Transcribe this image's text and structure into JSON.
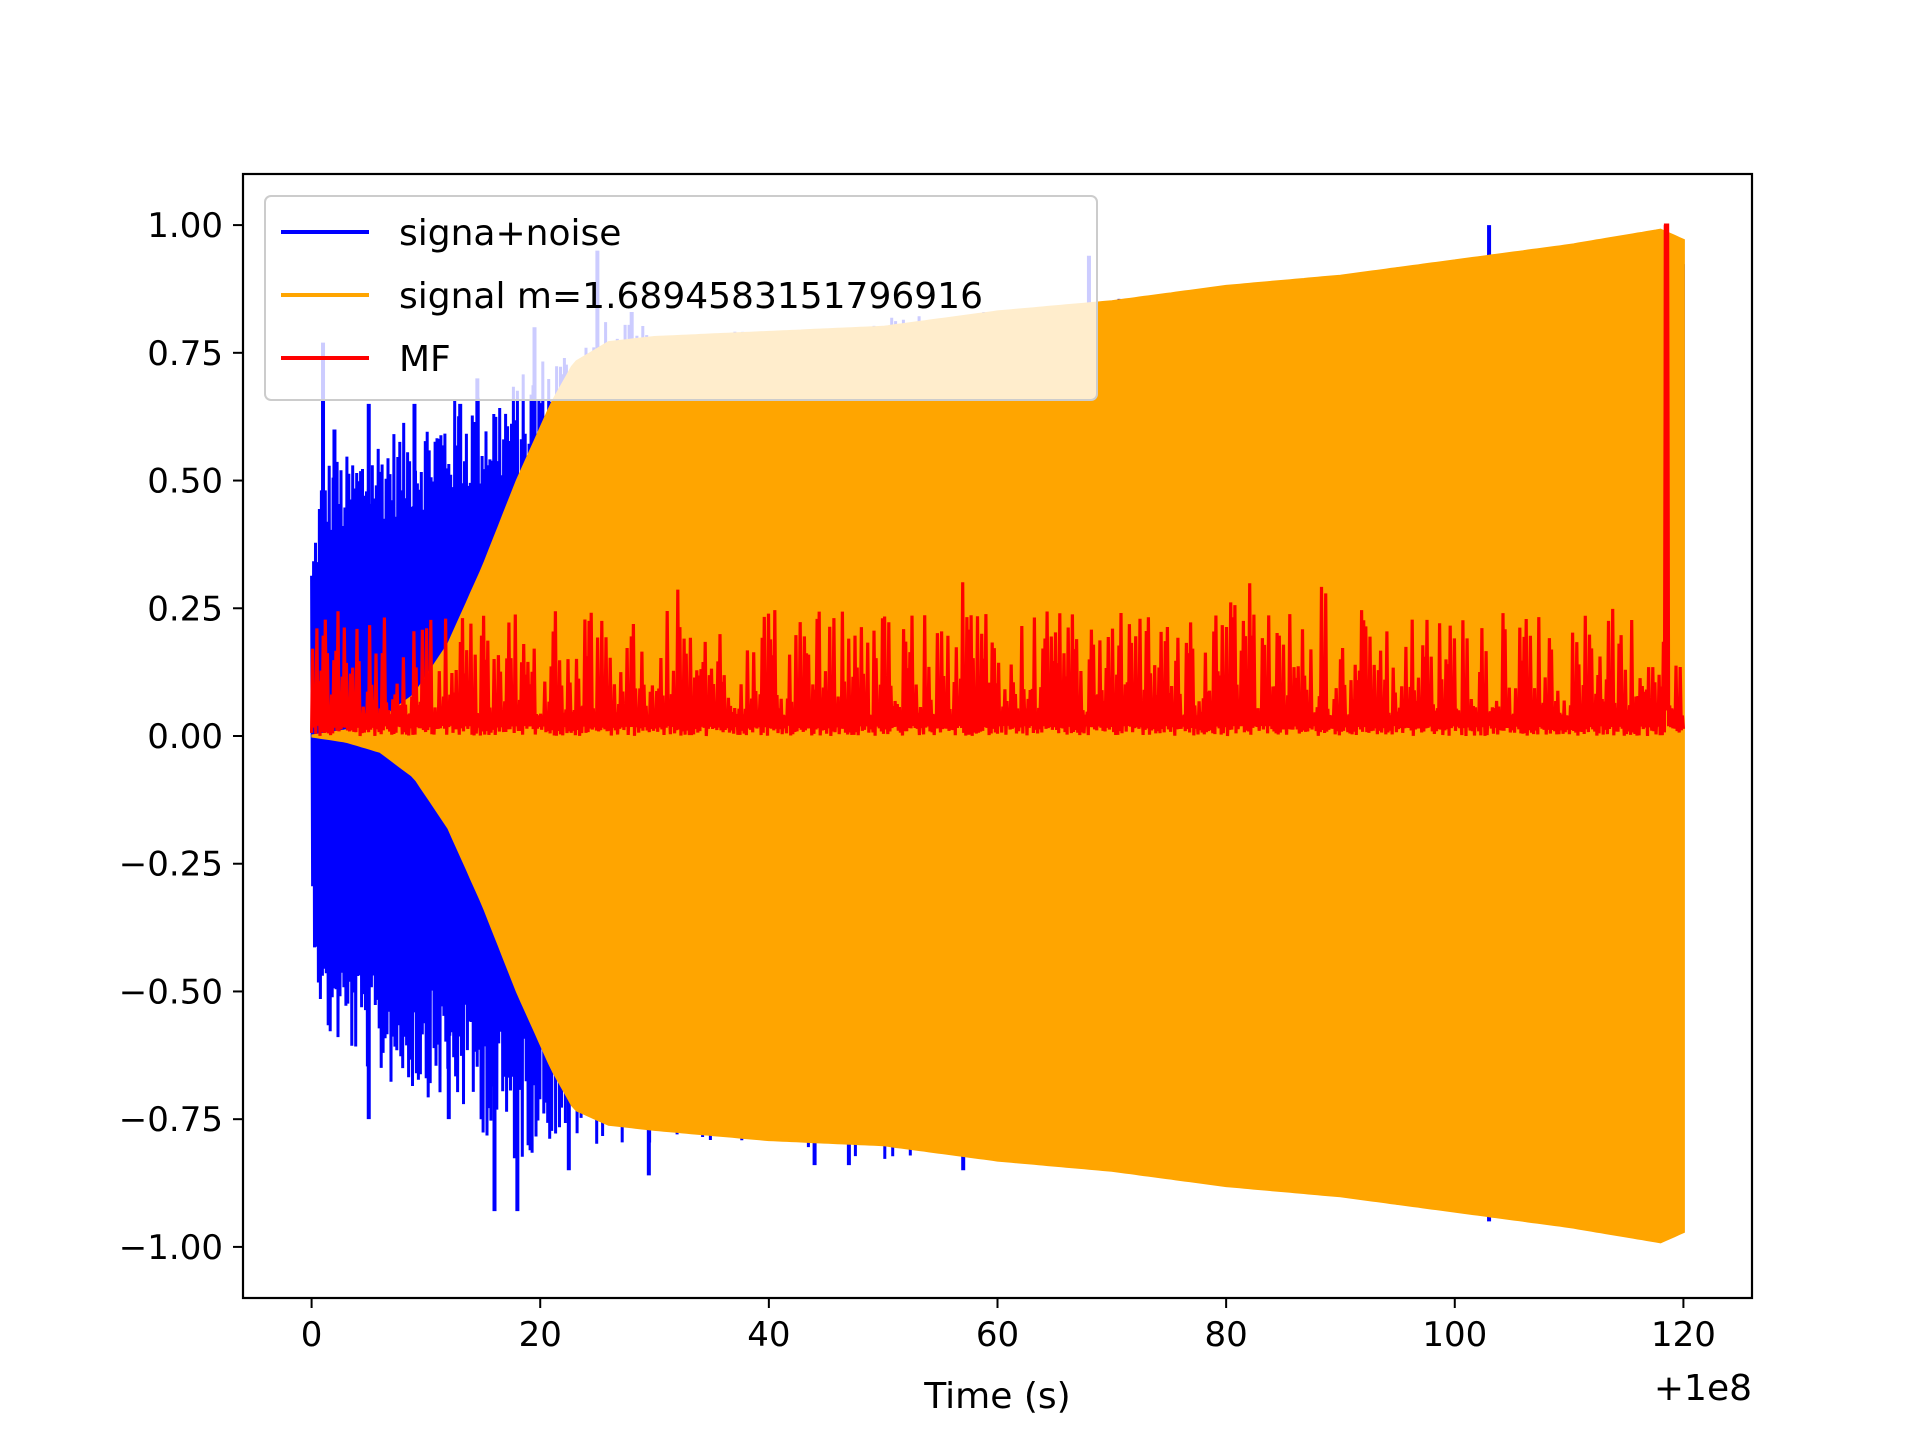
{
  "chart_data": {
    "type": "line",
    "title": "",
    "xlabel": "Time (s)",
    "ylabel": "",
    "x_offset_label": "+1e8",
    "xlim": [
      -6,
      126
    ],
    "ylim": [
      -1.1,
      1.1
    ],
    "x_ticks": [
      0,
      20,
      40,
      60,
      80,
      100,
      120
    ],
    "x_tick_labels": [
      "0",
      "20",
      "40",
      "60",
      "80",
      "100",
      "120"
    ],
    "y_ticks": [
      1.0,
      0.75,
      0.5,
      0.25,
      0.0,
      -0.25,
      -0.5,
      -0.75,
      -1.0
    ],
    "y_tick_labels": [
      "1.00",
      "0.75",
      "0.50",
      "0.25",
      "0.00",
      "−0.25",
      "−0.50",
      "−0.75",
      "−1.00"
    ],
    "grid": false,
    "legend_position": "top-left",
    "series": [
      {
        "name": "signa+noise",
        "color": "#0000ff",
        "envelope_time": [
          0,
          1,
          3,
          6,
          9,
          12,
          15,
          18,
          20,
          25,
          30,
          40,
          50,
          60,
          70,
          80,
          90,
          100,
          110,
          120
        ],
        "envelope_upper": [
          0.35,
          0.55,
          0.55,
          0.6,
          0.62,
          0.66,
          0.68,
          0.7,
          0.75,
          0.82,
          0.8,
          0.8,
          0.82,
          0.84,
          0.86,
          0.88,
          0.9,
          0.93,
          0.96,
          0.99
        ],
        "envelope_lower": [
          -0.35,
          -0.6,
          -0.62,
          -0.68,
          -0.7,
          -0.72,
          -0.78,
          -0.85,
          -0.8,
          -0.8,
          -0.8,
          -0.8,
          -0.83,
          -0.84,
          -0.86,
          -0.88,
          -0.9,
          -0.93,
          -0.96,
          -0.99
        ],
        "spikes": [
          {
            "t": 1.0,
            "v": 0.77
          },
          {
            "t": 2.0,
            "v": 0.6
          },
          {
            "t": 5.0,
            "v": 0.65
          },
          {
            "t": 9.0,
            "v": 0.65
          },
          {
            "t": 13.0,
            "v": 0.65
          },
          {
            "t": 14.5,
            "v": 0.7
          },
          {
            "t": 19.5,
            "v": 0.8
          },
          {
            "t": 25.0,
            "v": 0.95
          },
          {
            "t": 28.0,
            "v": 0.83
          },
          {
            "t": 68.0,
            "v": 0.94
          },
          {
            "t": 103.0,
            "v": 1.0
          },
          {
            "t": 5.0,
            "v": -0.75
          },
          {
            "t": 12.0,
            "v": -0.75
          },
          {
            "t": 16.0,
            "v": -0.93
          },
          {
            "t": 18.0,
            "v": -0.93
          },
          {
            "t": 22.5,
            "v": -0.85
          },
          {
            "t": 29.5,
            "v": -0.86
          },
          {
            "t": 44.0,
            "v": -0.84
          },
          {
            "t": 47.0,
            "v": -0.84
          },
          {
            "t": 57.0,
            "v": -0.85
          },
          {
            "t": 103.0,
            "v": -0.95
          }
        ]
      },
      {
        "name": "signal m=1.6894583151796916",
        "color": "#ffa500",
        "envelope_time": [
          0,
          3,
          6,
          9,
          12,
          15,
          18,
          21,
          23,
          26,
          30,
          40,
          50,
          60,
          70,
          80,
          90,
          100,
          110,
          118,
          120
        ],
        "envelope_upper": [
          0.0,
          0.01,
          0.03,
          0.08,
          0.18,
          0.33,
          0.5,
          0.65,
          0.73,
          0.77,
          0.78,
          0.79,
          0.8,
          0.83,
          0.85,
          0.88,
          0.9,
          0.93,
          0.96,
          0.99,
          0.97
        ],
        "envelope_lower": [
          0.0,
          -0.01,
          -0.03,
          -0.08,
          -0.18,
          -0.33,
          -0.5,
          -0.65,
          -0.73,
          -0.76,
          -0.77,
          -0.79,
          -0.8,
          -0.83,
          -0.85,
          -0.88,
          -0.9,
          -0.93,
          -0.96,
          -0.99,
          -0.97
        ]
      },
      {
        "name": "MF",
        "color": "#ff0000",
        "baseline_range": [
          0.0,
          0.25
        ],
        "peak": {
          "t": 118.5,
          "v": 1.0
        }
      }
    ]
  }
}
